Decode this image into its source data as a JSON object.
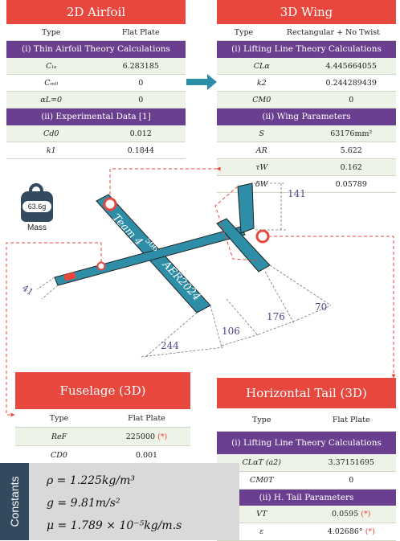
{
  "airfoil_2d": {
    "title": "2D Airfoil",
    "type_label": "Type",
    "type_value": "Flat Plate",
    "sec1": "(i) Thin Airfoil Theory Calculations",
    "rows1": [
      {
        "sym": "Cₗₐ",
        "val": "6.283185"
      },
      {
        "sym": "Cₘ₀",
        "val": "0"
      },
      {
        "sym": "αL=0",
        "val": "0"
      }
    ],
    "sec2": "(ii) Experimental Data [1]",
    "rows2": [
      {
        "sym": "Cd0",
        "val": "0.012"
      },
      {
        "sym": "k1",
        "val": "0.1844"
      }
    ]
  },
  "wing_3d": {
    "title": "3D Wing",
    "type_label": "Type",
    "type_value": "Rectangular + No Twist",
    "sec1": "(i) Lifting Line Theory Calculations",
    "rows1": [
      {
        "sym": "CLα",
        "val": "4.445664055"
      },
      {
        "sym": "k2",
        "val": "0.244289439"
      },
      {
        "sym": "CM0",
        "val": "0"
      }
    ],
    "sec2": "(ii) Wing Parameters",
    "rows2": [
      {
        "sym": "S",
        "val": "63176mm²"
      },
      {
        "sym": "AR",
        "val": "5.622"
      },
      {
        "sym": "τW",
        "val": "0.162"
      },
      {
        "sym": "δW",
        "val": "0.05789"
      }
    ]
  },
  "fuselage": {
    "title": "Fuselage (3D)",
    "type_label": "Type",
    "type_value": "Flat Plate",
    "rows": [
      {
        "sym": "ReF",
        "val": "225000",
        "mark": "(*)"
      },
      {
        "sym": "CD0",
        "val": "0.001",
        "mark": ""
      }
    ]
  },
  "htail": {
    "title": "Horizontal Tail (3D)",
    "type_label": "Type",
    "type_value": "Flat Plate",
    "sec1": "(i) Lifting Line Theory Calculations",
    "rows1": [
      {
        "sym": "CLαT (a2)",
        "val": "3.37151695",
        "mark": ""
      },
      {
        "sym": "CM0T",
        "val": "0",
        "mark": ""
      }
    ],
    "sec2": "(ii) H. Tail Parameters",
    "rows2": [
      {
        "sym": "VT",
        "val": "0.0595",
        "mark": "(*)"
      },
      {
        "sym": "ε",
        "val": "4.02686°",
        "mark": "(*)"
      }
    ]
  },
  "mass": {
    "value": "63.6g",
    "label": "Mass"
  },
  "aircraft": {
    "label_team": "Team 4",
    "label_number": "506",
    "label_event": "AER2024"
  },
  "dimensions": {
    "d141": "141",
    "d41": "41",
    "d106": "106",
    "d176": "176",
    "d70": "70",
    "d244": "244"
  },
  "constants": {
    "tab": "Constants",
    "rho": "ρ = 1.225kg/m³",
    "g": "g = 9.81m/s²",
    "mu": "μ = 1.789 × 10⁻⁵kg/m.s"
  },
  "colors": {
    "red": "#e8473e",
    "purple": "#6b3f8f",
    "teal": "#2e8ea8",
    "navy": "#33495e"
  }
}
